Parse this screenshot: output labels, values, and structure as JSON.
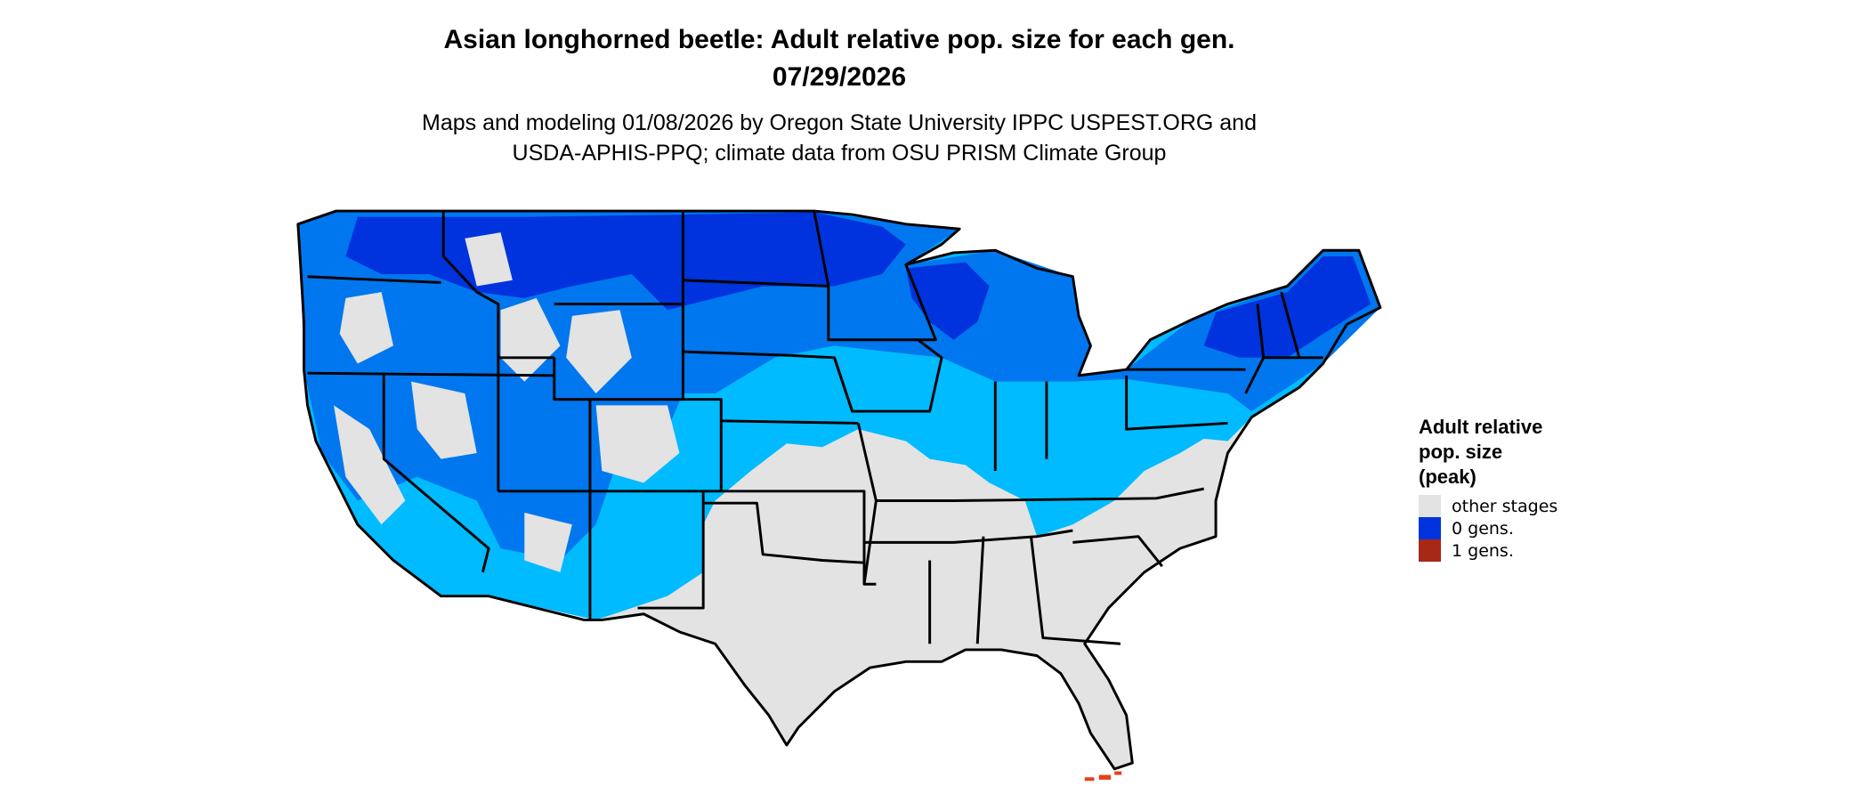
{
  "title": {
    "line1": "Asian longhorned beetle: Adult relative pop. size for each gen.",
    "line2": "07/29/2026"
  },
  "subtitle": {
    "line1": "Maps and modeling 01/08/2026 by Oregon State University IPPC USPEST.ORG and",
    "line2": "USDA-APHIS-PPQ; climate data from OSU PRISM Climate Group"
  },
  "legend": {
    "title_lines": [
      "Adult relative",
      "pop. size",
      "(peak)"
    ],
    "items": [
      {
        "label": "other stages",
        "color": "#E3E3E3"
      },
      {
        "label": "0 gens.",
        "color": "#0033DD"
      },
      {
        "label": "1 gens.",
        "color": "#A82818"
      }
    ]
  },
  "map_colors": {
    "other_stages": "#E3E3E3",
    "low_blue": "#00BBFF",
    "mid_blue": "#0077EE",
    "dark_blue": "#0033DD",
    "gen1_red": "#E8401A",
    "border": "#000000"
  }
}
